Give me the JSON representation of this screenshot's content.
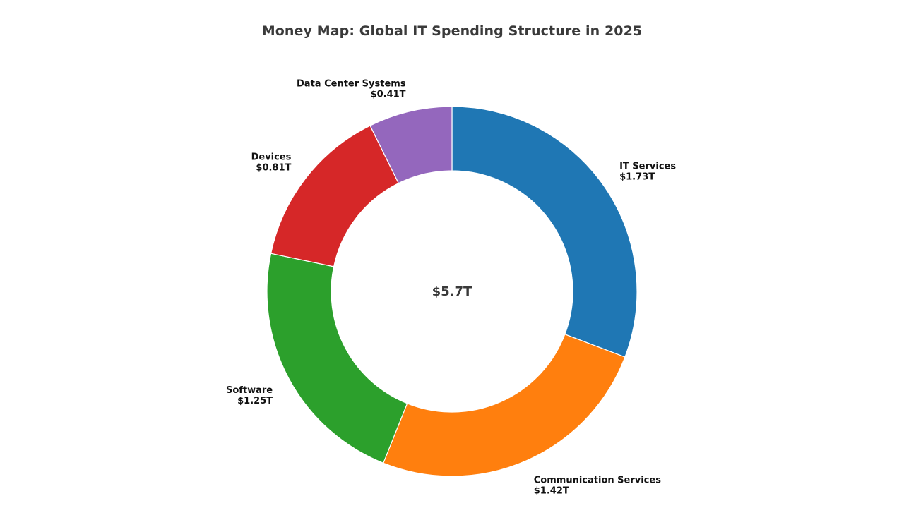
{
  "chart_data": {
    "type": "pie",
    "variant": "donut",
    "title": "Money Map: Global IT Spending Structure in 2025",
    "center_label": "$5.7T",
    "legend": "none",
    "start_angle_deg": 90,
    "direction": "clockwise",
    "series": [
      {
        "name": "IT Services",
        "value": 1.73,
        "value_label": "$1.73T",
        "color": "#1f77b4"
      },
      {
        "name": "Communication Services",
        "value": 1.42,
        "value_label": "$1.42T",
        "color": "#ff7f0e"
      },
      {
        "name": "Software",
        "value": 1.25,
        "value_label": "$1.25T",
        "color": "#2ca02c"
      },
      {
        "name": "Devices",
        "value": 0.81,
        "value_label": "$0.81T",
        "color": "#d62728"
      },
      {
        "name": "Data Center Systems",
        "value": 0.41,
        "value_label": "$0.41T",
        "color": "#9467bd"
      }
    ]
  }
}
